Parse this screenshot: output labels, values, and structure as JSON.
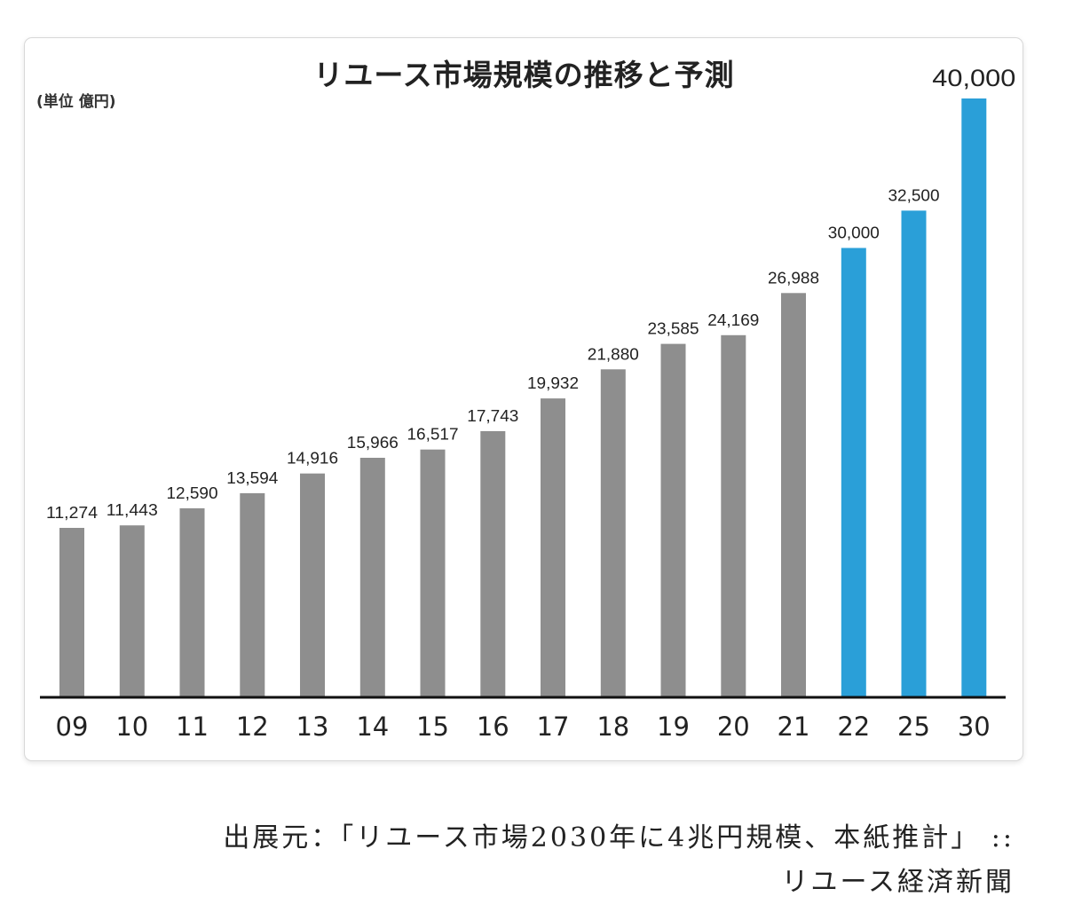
{
  "chart_data": {
    "type": "bar",
    "title": "リユース市場規模の推移と予測",
    "unit_label": "(単位 億円)",
    "xlabel": "",
    "ylabel": "",
    "categories": [
      "09",
      "10",
      "11",
      "12",
      "13",
      "14",
      "15",
      "16",
      "17",
      "18",
      "19",
      "20",
      "21",
      "22",
      "25",
      "30"
    ],
    "values": [
      11274,
      11443,
      12590,
      13594,
      14916,
      15966,
      16517,
      17743,
      19932,
      21880,
      23585,
      24169,
      26988,
      30000,
      32500,
      40000
    ],
    "value_labels": [
      "11,274",
      "11,443",
      "12,590",
      "13,594",
      "14,916",
      "15,966",
      "16,517",
      "17,743",
      "19,932",
      "21,880",
      "23,585",
      "24,169",
      "26,988",
      "30,000",
      "32,500",
      "40,000"
    ],
    "series_kind": [
      "actual",
      "actual",
      "actual",
      "actual",
      "actual",
      "actual",
      "actual",
      "actual",
      "actual",
      "actual",
      "actual",
      "actual",
      "actual",
      "forecast",
      "forecast",
      "forecast"
    ],
    "ylim": [
      0,
      40000
    ],
    "grid": false,
    "legend": "none"
  },
  "colors": {
    "actual": "#8e8e8e",
    "forecast": "#2a9fd8",
    "axis": "#111111",
    "text": "#222222"
  },
  "source": {
    "line1": "出展元：「リユース市場2030年に4兆円規模、本紙推計」 ::",
    "line2": "リユース経済新聞"
  }
}
